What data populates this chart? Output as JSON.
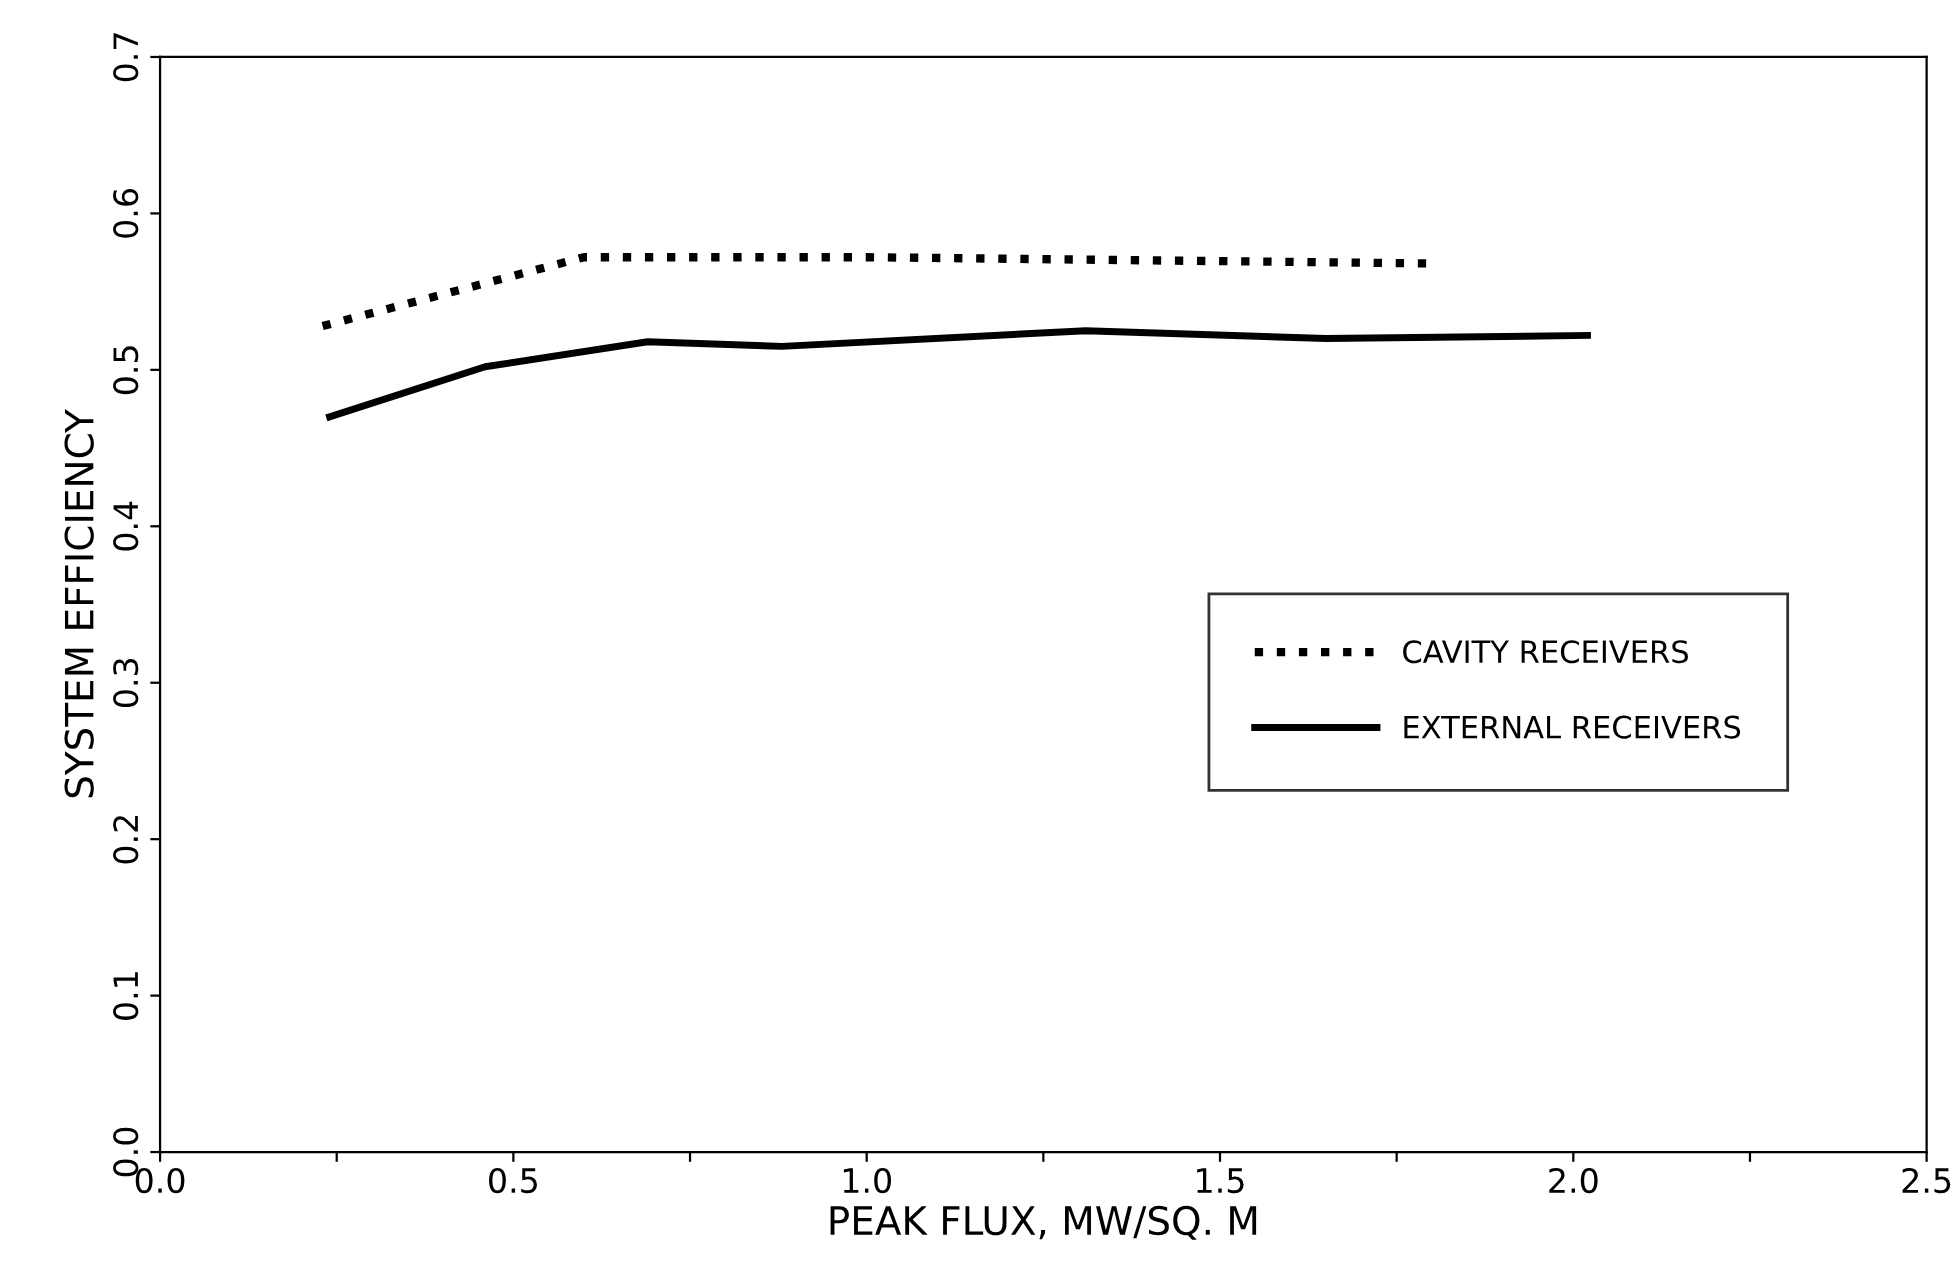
{
  "chart_data": {
    "type": "line",
    "xlabel": "PEAK FLUX, MW/SQ. M",
    "ylabel": "SYSTEM EFFICIENCY",
    "xlim": [
      0,
      2.5
    ],
    "ylim": [
      0,
      0.7
    ],
    "xticks": [
      {
        "value": 0,
        "label": "0.0"
      },
      {
        "value": 0.25,
        "label": null
      },
      0.5,
      {
        "value": 0.75,
        "label": null
      },
      {
        "value": 1,
        "label": "1.0"
      },
      {
        "value": 1.25,
        "label": null
      },
      1.5,
      {
        "value": 1.75,
        "label": null
      },
      {
        "value": 2,
        "label": "2.0"
      },
      {
        "value": 2.25,
        "label": null
      },
      2.5
    ],
    "yticks": [
      {
        "value": 0,
        "label": "0.0"
      },
      0.1,
      0.2,
      0.3,
      0.4,
      0.5,
      0.6,
      0.7
    ],
    "grid": false,
    "legend": "right",
    "marker": "none",
    "series": [
      {
        "name": "CAVITY RECEIVERS",
        "color": "#000000",
        "line_style": "dotted",
        "x": [
          0.23,
          0.6,
          1.0,
          1.4,
          1.8
        ],
        "values": [
          0.528,
          0.572,
          0.572,
          0.57,
          0.568
        ]
      },
      {
        "name": "EXTERNAL RECEIVERS",
        "color": "#000000",
        "line_style": "solid",
        "x": [
          0.24,
          0.46,
          0.69,
          0.88,
          1.31,
          1.65,
          2.02
        ],
        "values": [
          0.47,
          0.502,
          0.518,
          0.515,
          0.525,
          0.52,
          0.522
        ]
      }
    ]
  }
}
